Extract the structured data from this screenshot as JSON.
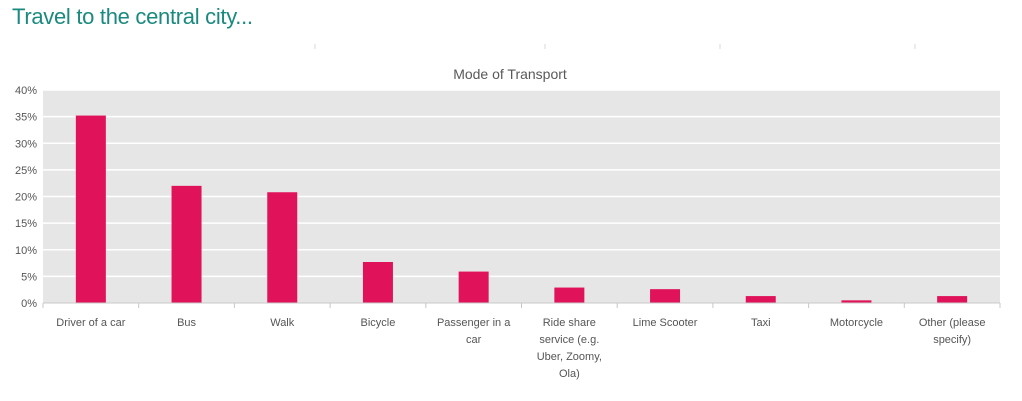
{
  "heading": "Travel to the central city...",
  "colors": {
    "heading": "#1a8a7f",
    "bar": "#e0135a",
    "plot_bg": "#e6e6e6",
    "grid": "#ffffff"
  },
  "chart_data": {
    "type": "bar",
    "title": "Mode of Transport",
    "xlabel": "",
    "ylabel": "",
    "ylim": [
      0,
      40
    ],
    "yticks": [
      0,
      5,
      10,
      15,
      20,
      25,
      30,
      35,
      40
    ],
    "ytick_labels": [
      "0%",
      "5%",
      "10%",
      "15%",
      "20%",
      "25%",
      "30%",
      "35%",
      "40%"
    ],
    "grid": true,
    "legend": "none",
    "categories": [
      [
        "Driver of a car"
      ],
      [
        "Bus"
      ],
      [
        "Walk"
      ],
      [
        "Bicycle"
      ],
      [
        "Passenger in a",
        "car"
      ],
      [
        "Ride share",
        "service (e.g.",
        "Uber, Zoomy,",
        "Ola)"
      ],
      [
        "Lime Scooter"
      ],
      [
        "Taxi"
      ],
      [
        "Motorcycle"
      ],
      [
        "Other (please",
        "specify)"
      ]
    ],
    "values": [
      35.2,
      22.0,
      20.8,
      7.7,
      5.9,
      2.9,
      2.6,
      1.3,
      0.5,
      1.3
    ]
  }
}
